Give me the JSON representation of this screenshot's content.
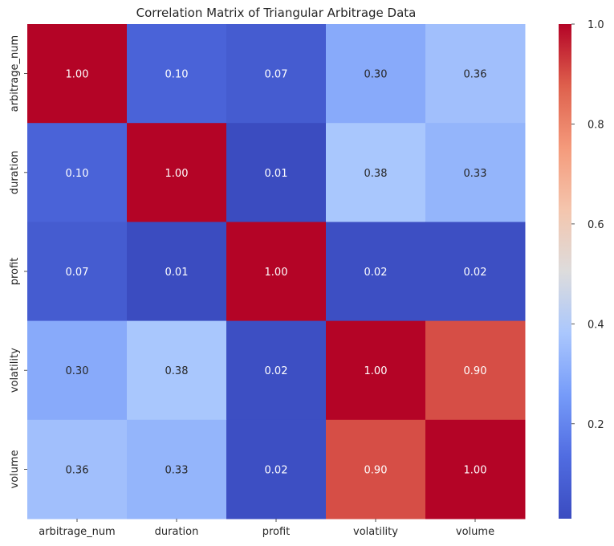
{
  "chart_data": {
    "type": "heatmap",
    "title": "Correlation Matrix of Triangular Arbitrage Data",
    "rows": [
      "arbitrage_num",
      "duration",
      "profit",
      "volatility",
      "volume"
    ],
    "columns": [
      "arbitrage_num",
      "duration",
      "profit",
      "volatility",
      "volume"
    ],
    "values": [
      [
        1.0,
        0.1,
        0.07,
        0.3,
        0.36
      ],
      [
        0.1,
        1.0,
        0.01,
        0.38,
        0.33
      ],
      [
        0.07,
        0.01,
        1.0,
        0.02,
        0.02
      ],
      [
        0.3,
        0.38,
        0.02,
        1.0,
        0.9
      ],
      [
        0.36,
        0.33,
        0.02,
        0.9,
        1.0
      ]
    ],
    "value_format": "2 decimals",
    "colormap": "coolwarm",
    "color_range": [
      0.01,
      1.0
    ],
    "colorbar_ticks": [
      "0.2",
      "0.4",
      "0.6",
      "0.8",
      "1.0"
    ],
    "colorbar_tick_values": [
      0.2,
      0.4,
      0.6,
      0.8,
      1.0
    ],
    "colorbar_placement": "right",
    "grid": false
  }
}
